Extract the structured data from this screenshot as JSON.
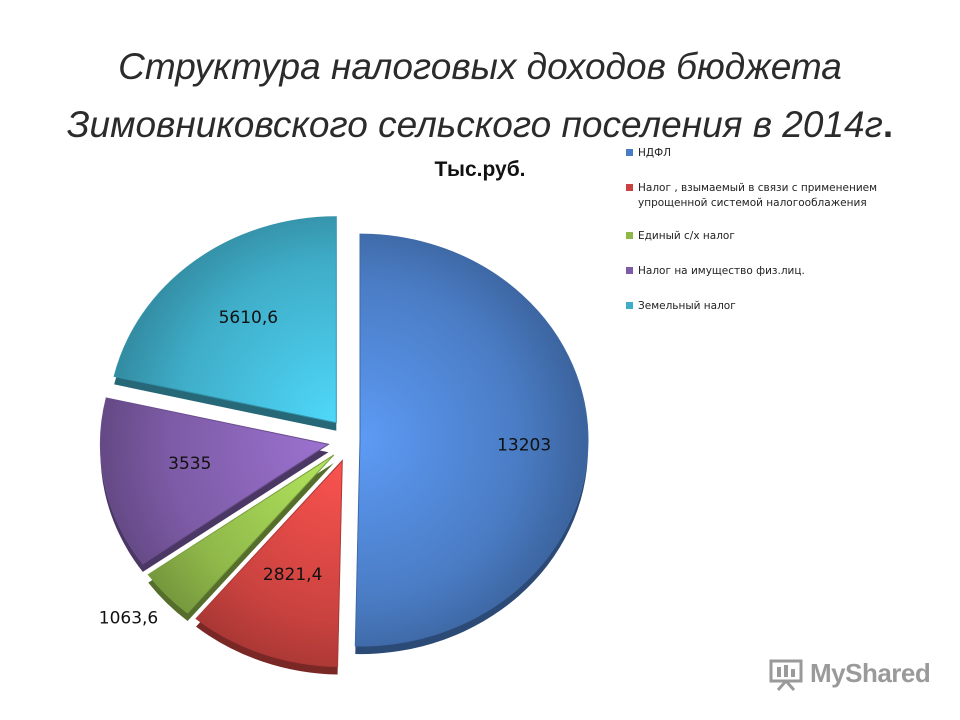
{
  "title": {
    "line1": "Структура налоговых доходов бюджета",
    "line2": "Зимовниковского сельского поселения в 2014г",
    "dot": "."
  },
  "unit_label": "Тыс.руб.",
  "chart_data": {
    "type": "pie",
    "style": "3d-exploded",
    "categories": [
      "НДФЛ",
      "Налог , взымаемый в связи с применением упрощенной системой налогооблажения",
      "Единый с/х налог",
      "Налог на имущество физ.лиц.",
      "Земельный налог"
    ],
    "values": [
      13203,
      2821.4,
      1063.6,
      3535,
      5610.6
    ],
    "value_labels": [
      "13203",
      "2821,4",
      "1063,6",
      "3535",
      "5610,6"
    ],
    "colors": [
      "#4a7cc4",
      "#c9423f",
      "#8fb84a",
      "#7d5ba6",
      "#3fadc8"
    ],
    "legend_position": "right"
  },
  "legend": {
    "items": [
      {
        "text": "НДФЛ",
        "color": "#4a7cc4"
      },
      {
        "text": "Налог , взымаемый в связи с применением\nупрощенной системой налогооблажения",
        "color": "#c9423f"
      },
      {
        "text": "Единый с/х налог",
        "color": "#8fb84a"
      },
      {
        "text": "Налог на имущество физ.лиц.",
        "color": "#7d5ba6"
      },
      {
        "text": "Земельный налог",
        "color": "#3fadc8"
      }
    ]
  },
  "watermark": {
    "text": "MyShared",
    "icon": "presentation-board-icon"
  }
}
